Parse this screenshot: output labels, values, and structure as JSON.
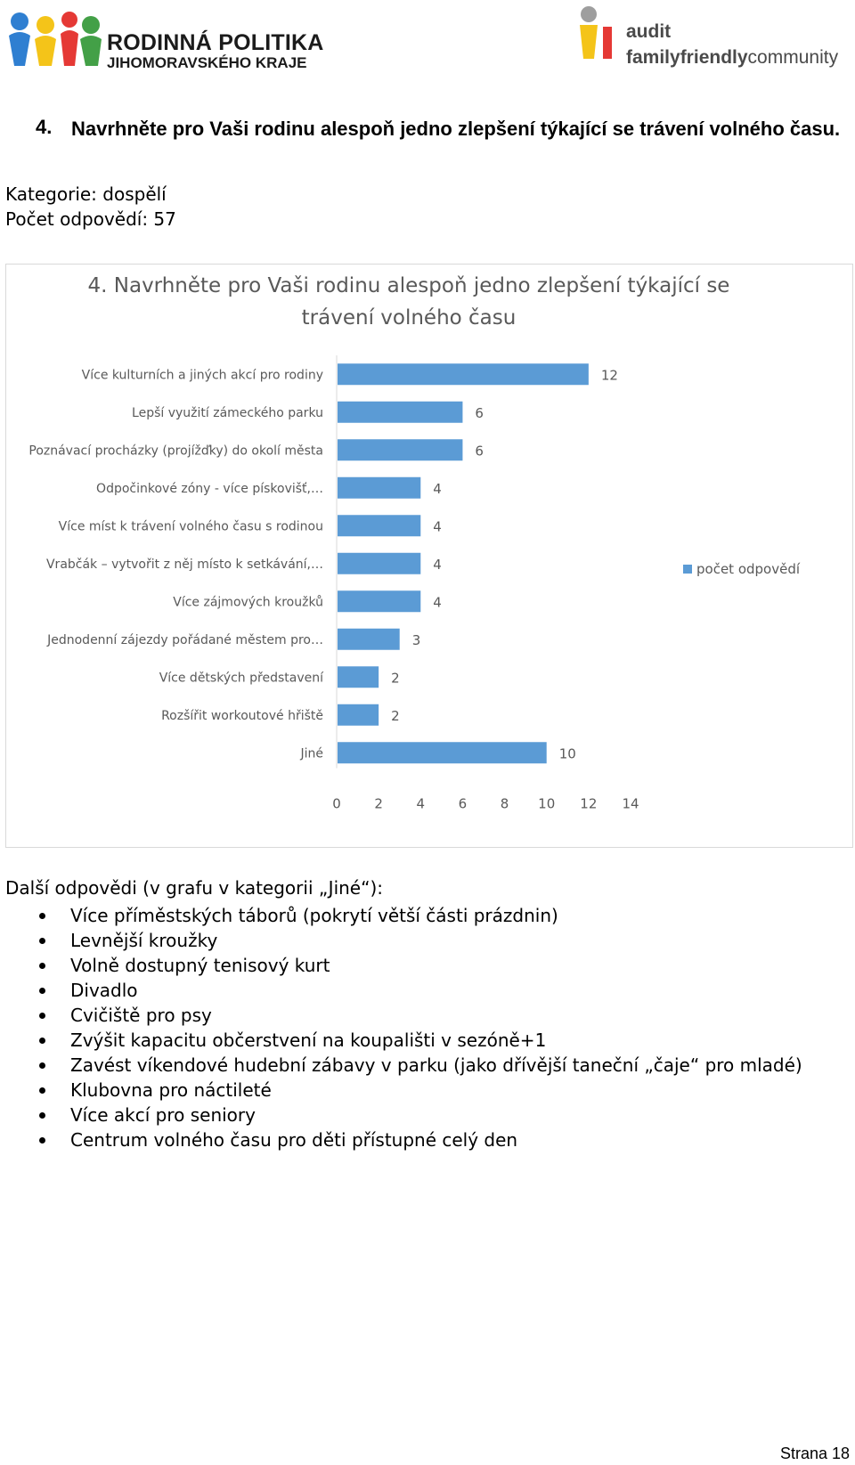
{
  "header": {
    "left_logo_line1": "RODINNÁ POLITIKA",
    "left_logo_line2": "JIHOMORAVSKÉHO KRAJE",
    "right_logo_line1": "audit",
    "right_logo_line2_bold": "familyfriendly",
    "right_logo_line2_rest": "community"
  },
  "question": {
    "number": "4.",
    "text": "Navrhněte pro Vaši rodinu alespoň jedno zlepšení týkající se trávení volného času."
  },
  "meta": {
    "category": "Kategorie: dospělí",
    "answers_count": "Počet odpovědí: 57"
  },
  "colors": {
    "bar": "#5b9bd5",
    "axis_text": "#595959",
    "grid": "#d9d9d9"
  },
  "chart_data": {
    "type": "bar",
    "orientation": "horizontal",
    "title": "4. Navrhněte pro Vaši rodinu alespoň jedno zlepšení týkající se trávení volného času",
    "title_lines": [
      "4. Navrhněte pro Vaši rodinu alespoň jedno zlepšení týkající se",
      "trávení volného času"
    ],
    "categories": [
      "Více kulturních a jiných akcí pro rodiny",
      "Lepší využití zámeckého parku",
      "Poznávací procházky (projížďky) do okolí města",
      "Odpočinkové zóny - více pískovišť,…",
      "Více míst k trávení volného času s rodinou",
      "Vrabčák – vytvořit z něj místo k setkávání,…",
      "Více zájmových kroužků",
      "Jednodenní zájezdy pořádané městem pro…",
      "Více dětských představení",
      "Rozšířit workoutové hřiště",
      "Jiné"
    ],
    "series": [
      {
        "name": "počet odpovědí",
        "values": [
          12,
          6,
          6,
          4,
          4,
          4,
          4,
          3,
          2,
          2,
          10
        ]
      }
    ],
    "xlim": [
      0,
      14
    ],
    "xticks": [
      "0",
      "2",
      "4",
      "6",
      "8",
      "10",
      "12",
      "14"
    ],
    "legend": "right",
    "data_labels": true,
    "grid": false
  },
  "more_answers": {
    "title": "Další odpovědi (v grafu v kategorii „Jiné“):",
    "items": [
      "Více příměstských táborů (pokrytí větší části prázdnin)",
      "Levnější kroužky",
      "Volně dostupný tenisový kurt",
      "Divadlo",
      "Cvičiště pro psy",
      "Zvýšit kapacitu občerstvení na koupališti v sezóně+1",
      "Zavést víkendové hudební zábavy v parku (jako dřívější taneční „čaje“ pro mladé)",
      "Klubovna pro náctileté",
      "Více akcí pro seniory",
      "Centrum volného času pro děti přístupné celý den"
    ]
  },
  "footer": {
    "page": "Strana 18"
  }
}
